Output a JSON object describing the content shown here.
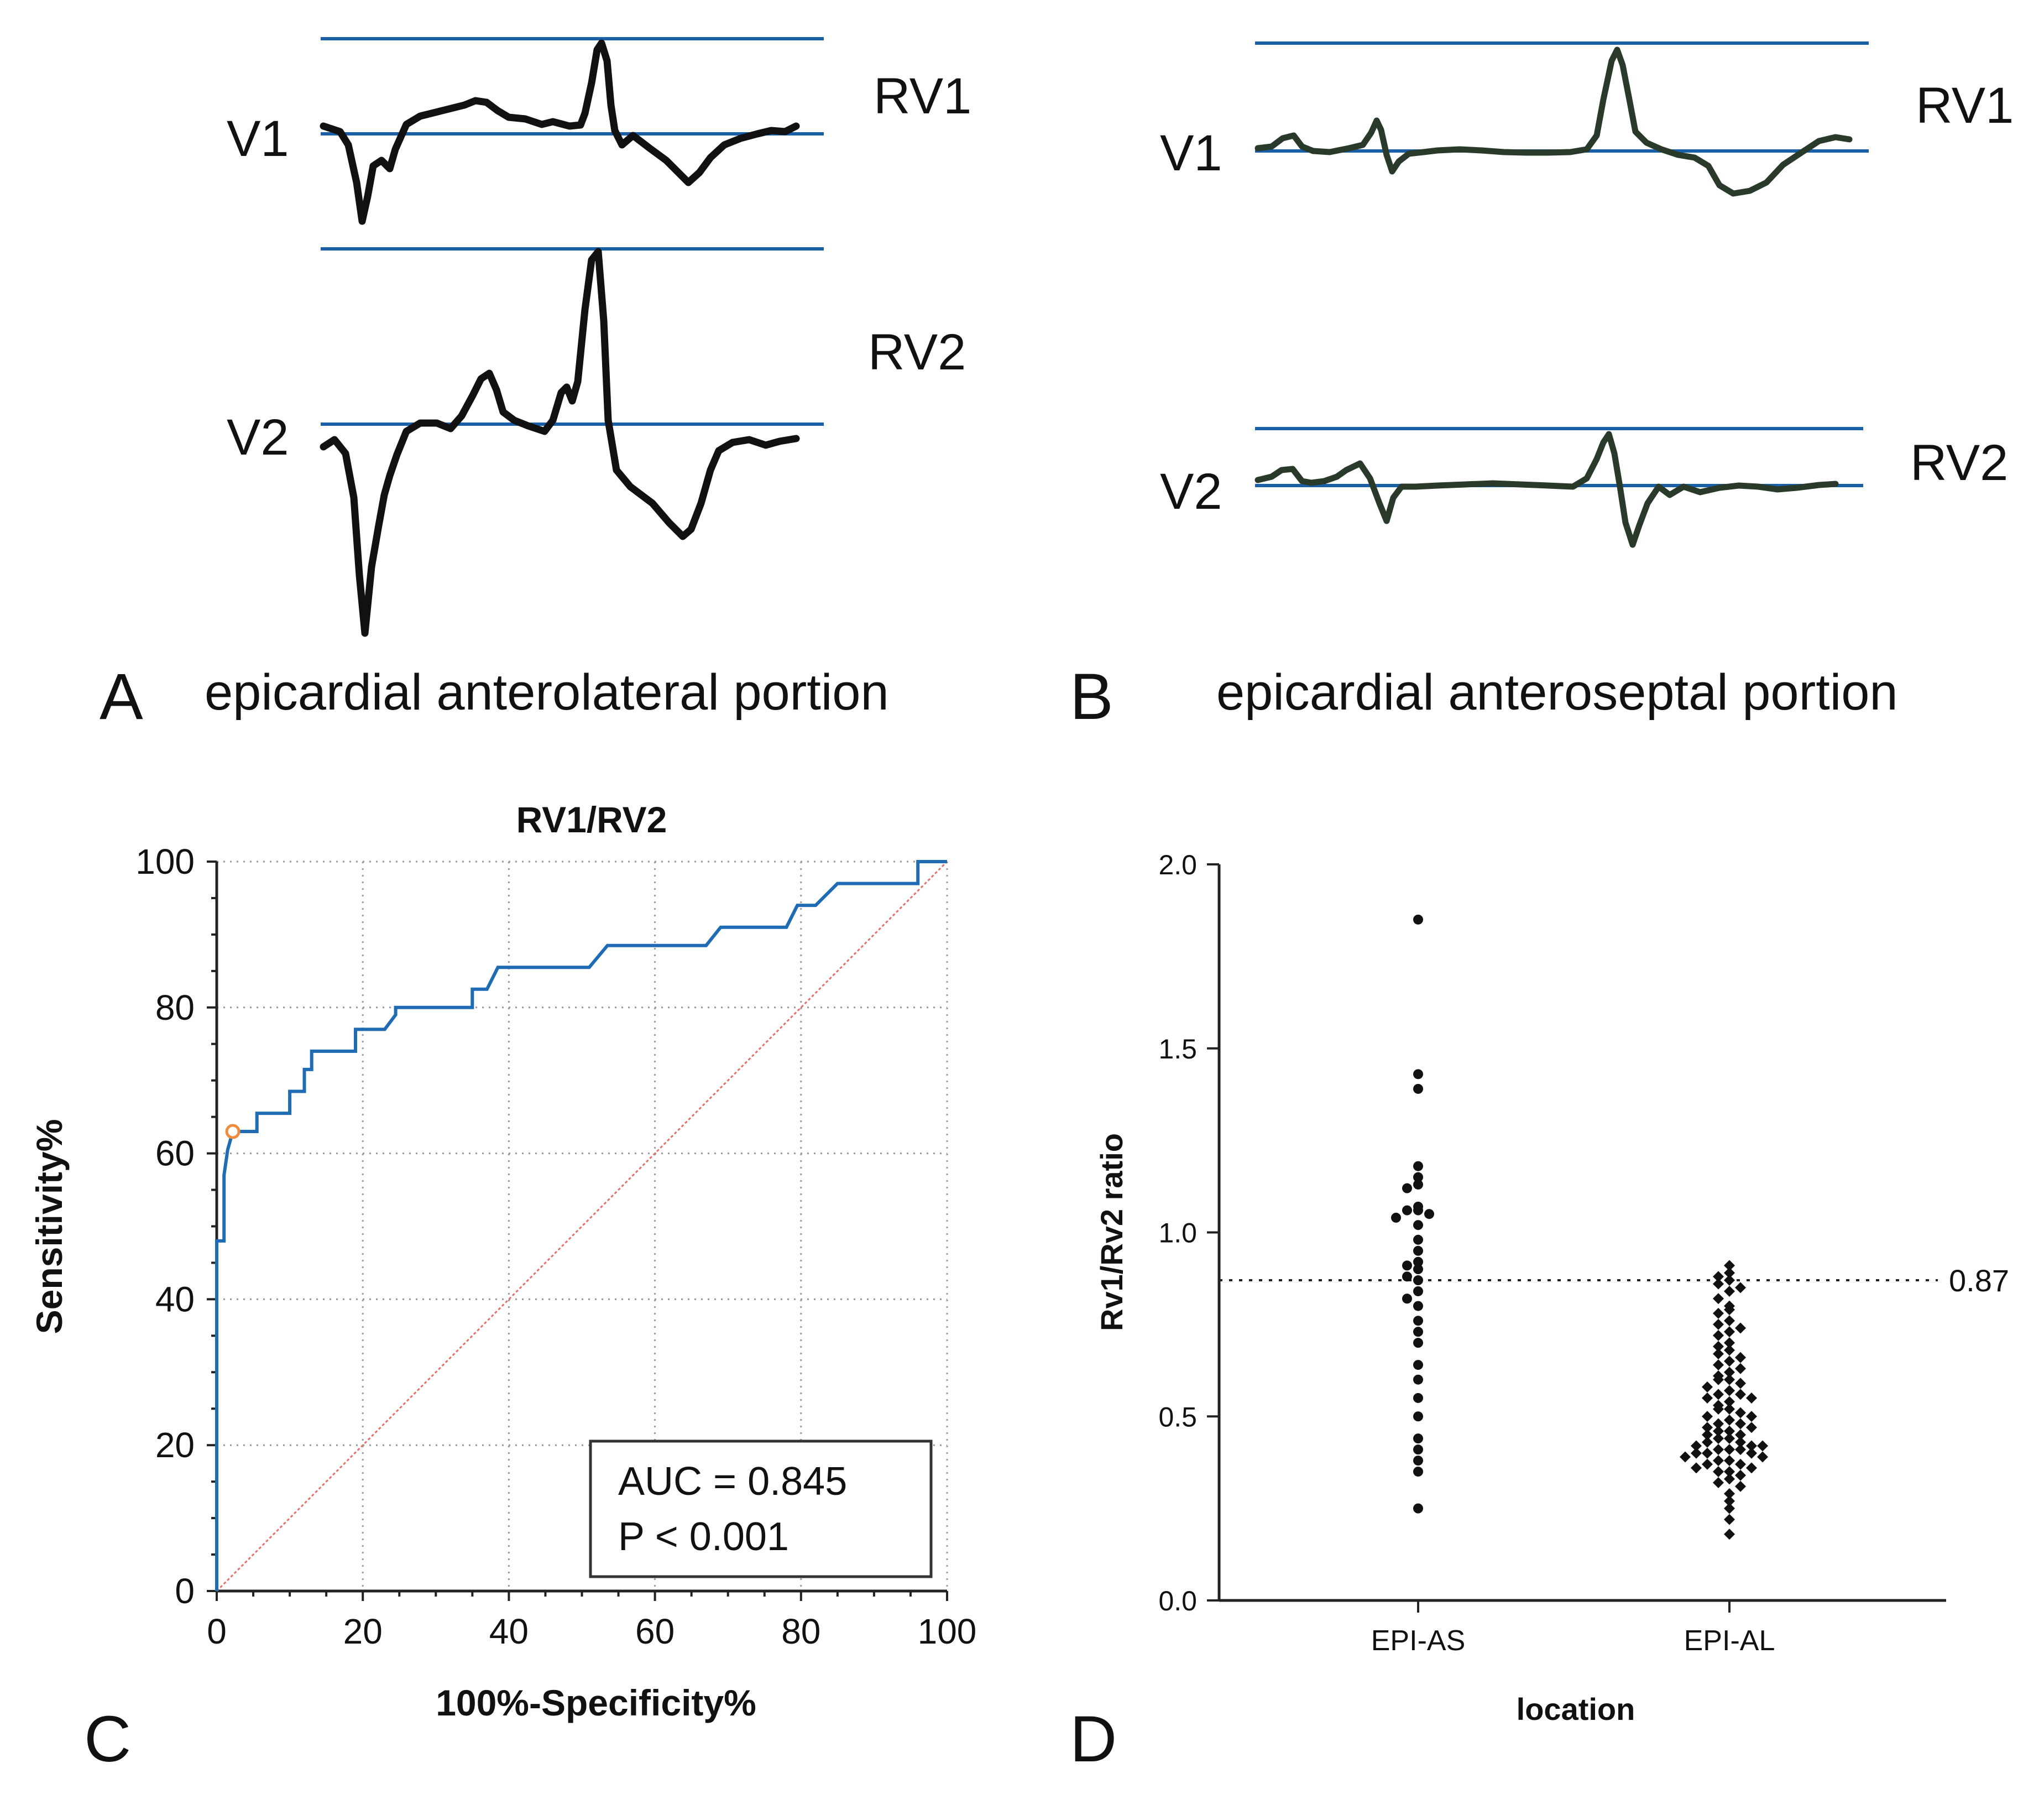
{
  "panels": {
    "a": {
      "letter": "A",
      "caption": "epicardial anterolateral portion",
      "lead1": "V1",
      "lead2": "V2",
      "r1": "RV1",
      "r2": "RV2"
    },
    "b": {
      "letter": "B",
      "caption": "epicardial anteroseptal portion",
      "lead1": "V1",
      "lead2": "V2",
      "r1": "RV1",
      "r2": "RV2"
    },
    "c": {
      "letter": "C"
    },
    "d": {
      "letter": "D"
    }
  },
  "colors": {
    "roc": "#1f6cb5",
    "reference": "#e4716b",
    "cutoff_marker": "#f08a3c",
    "ecg_baseline": "#1a5fa8"
  },
  "chart_data": [
    {
      "type": "line",
      "title": "RV1/RV2",
      "xlabel": "100%-Specificity%",
      "ylabel": "Sensitivity%",
      "xlim": [
        0,
        100
      ],
      "ylim": [
        0,
        100
      ],
      "x_ticks": [
        "0",
        "20",
        "40",
        "60",
        "80",
        "100"
      ],
      "y_ticks": [
        "0",
        "20",
        "40",
        "60",
        "80",
        "100"
      ],
      "grid": true,
      "series": [
        {
          "name": "ROC curve",
          "x": [
            0,
            0,
            1,
            1,
            1.5,
            2.2,
            5.5,
            5.5,
            10,
            10,
            12,
            12,
            13,
            13,
            16,
            19,
            19,
            23,
            24.5,
            24.5,
            35,
            35,
            37,
            38.5,
            51,
            53.5,
            67,
            69,
            71,
            78,
            79.5,
            82,
            85,
            89,
            96,
            96,
            100
          ],
          "y": [
            0,
            48,
            48,
            57,
            60.5,
            63,
            63,
            65.5,
            65.5,
            68.5,
            68.5,
            71.5,
            71.5,
            74,
            74,
            74,
            77,
            77,
            79,
            80,
            80,
            82.5,
            82.5,
            85.5,
            85.5,
            88.5,
            88.5,
            91,
            91,
            91,
            94,
            94,
            97,
            97,
            97,
            100,
            100
          ]
        },
        {
          "name": "Reference line",
          "x": [
            0,
            100
          ],
          "y": [
            0,
            100
          ]
        }
      ],
      "cutoff_point": {
        "x": 2.2,
        "y": 63
      },
      "annotations": [
        "AUC = 0.845",
        "P < 0.001"
      ]
    },
    {
      "type": "scatter",
      "xlabel": "location",
      "ylabel": "Rv1/Rv2 ratio",
      "ylim": [
        0,
        2
      ],
      "y_ticks": [
        "0.0",
        "0.5",
        "1.0",
        "1.5",
        "2.0"
      ],
      "categories": [
        "EPI-AS",
        "EPI-AL"
      ],
      "threshold": {
        "value": 0.87,
        "label": "0.87"
      },
      "series": [
        {
          "name": "EPI-AS",
          "marker": "circle",
          "values": [
            1.85,
            1.43,
            1.39,
            1.18,
            1.15,
            1.13,
            1.12,
            1.07,
            1.06,
            1.06,
            1.05,
            1.04,
            1.02,
            0.98,
            0.95,
            0.92,
            0.91,
            0.9,
            0.88,
            0.87,
            0.84,
            0.82,
            0.8,
            0.76,
            0.73,
            0.7,
            0.64,
            0.6,
            0.55,
            0.5,
            0.44,
            0.41,
            0.38,
            0.35,
            0.25
          ]
        },
        {
          "name": "EPI-AL",
          "marker": "diamond",
          "values": [
            0.91,
            0.89,
            0.88,
            0.87,
            0.86,
            0.85,
            0.84,
            0.82,
            0.8,
            0.79,
            0.78,
            0.76,
            0.75,
            0.74,
            0.73,
            0.72,
            0.7,
            0.69,
            0.68,
            0.67,
            0.66,
            0.65,
            0.64,
            0.63,
            0.62,
            0.61,
            0.6,
            0.6,
            0.59,
            0.58,
            0.57,
            0.56,
            0.56,
            0.55,
            0.55,
            0.54,
            0.53,
            0.52,
            0.52,
            0.51,
            0.5,
            0.5,
            0.49,
            0.48,
            0.48,
            0.47,
            0.47,
            0.46,
            0.46,
            0.45,
            0.45,
            0.44,
            0.44,
            0.43,
            0.43,
            0.42,
            0.42,
            0.42,
            0.41,
            0.41,
            0.41,
            0.4,
            0.4,
            0.4,
            0.39,
            0.39,
            0.38,
            0.38,
            0.37,
            0.37,
            0.36,
            0.36,
            0.35,
            0.35,
            0.34,
            0.33,
            0.32,
            0.31,
            0.29,
            0.27,
            0.25,
            0.22,
            0.18
          ]
        }
      ]
    }
  ]
}
